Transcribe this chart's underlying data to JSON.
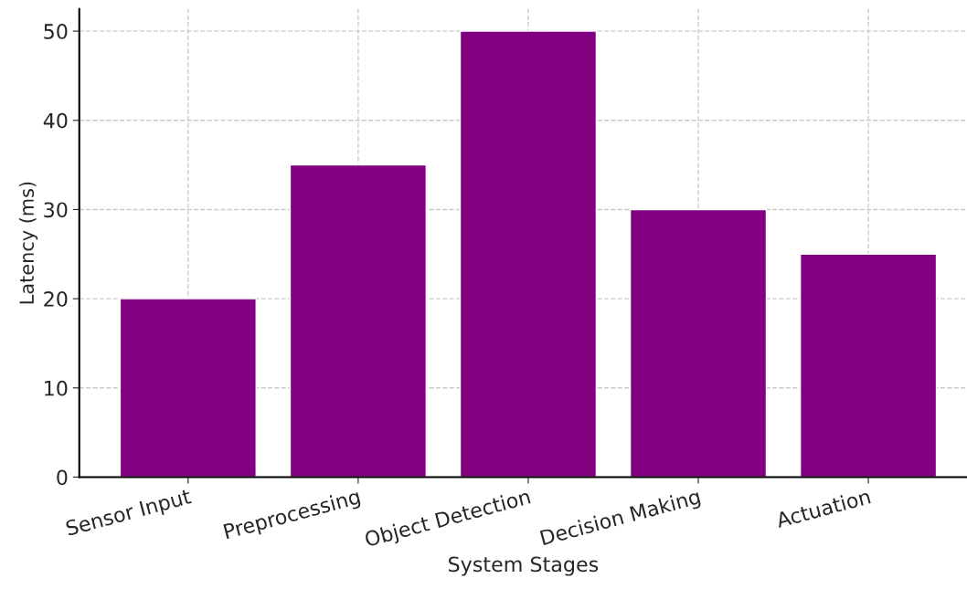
{
  "chart_data": {
    "type": "bar",
    "xlabel": "System Stages",
    "ylabel": "Latency (ms)",
    "categories": [
      "Sensor Input",
      "Preprocessing",
      "Object Detection",
      "Decision Making",
      "Actuation"
    ],
    "values": [
      20,
      35,
      50,
      30,
      25
    ],
    "color": "#800080",
    "ylim": [
      0,
      52.5
    ],
    "yticks": [
      0,
      10,
      20,
      30,
      40,
      50
    ],
    "grid": true
  }
}
